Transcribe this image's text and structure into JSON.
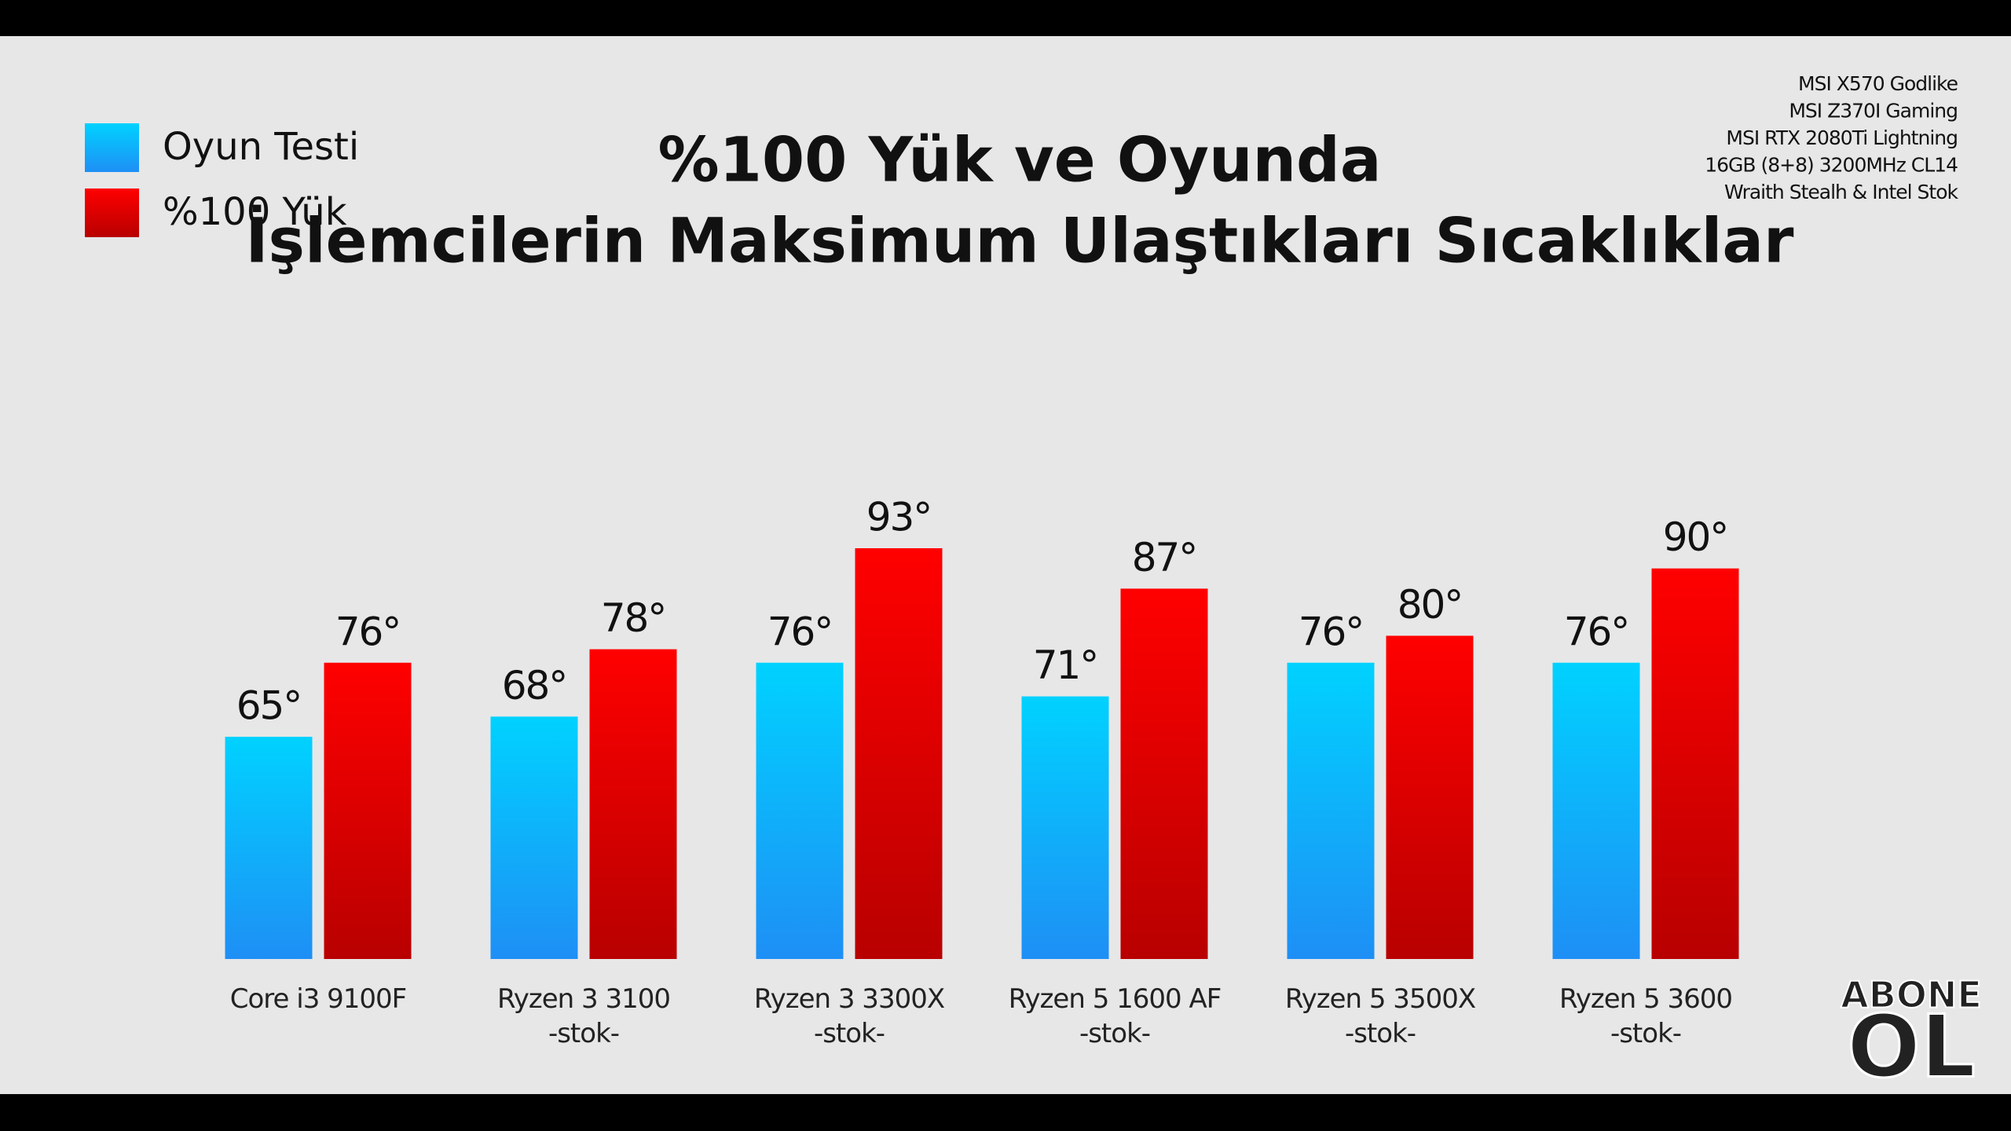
{
  "chart_data": {
    "type": "bar",
    "title": [
      "%100 Yük ve Oyunda",
      "İşlemcilerin Maksimum Ulaştıkları Sıcaklıklar"
    ],
    "categories": [
      "Core i3 9100F",
      "Ryzen 3 3100\n-stok-",
      "Ryzen 3 3300X\n-stok-",
      "Ryzen 5 1600 AF\n-stok-",
      "Ryzen 5 3500X\n-stok-",
      "Ryzen 5 3600\n-stok-"
    ],
    "series": [
      {
        "name": "Oyun Testi",
        "color": "#00d2ff",
        "values": [
          65,
          68,
          76,
          71,
          76,
          76
        ],
        "value_labels": [
          "65°",
          "68°",
          "76°",
          "71°",
          "76°",
          "76°"
        ]
      },
      {
        "name": "%100 Yük",
        "color": "#ff0000",
        "values": [
          76,
          78,
          93,
          87,
          80,
          90
        ],
        "value_labels": [
          "76°",
          "78°",
          "93°",
          "87°",
          "80°",
          "90°"
        ]
      }
    ],
    "ylim": [
      32,
      100
    ],
    "legend": "top-left"
  },
  "specs": [
    "MSI X570 Godlike",
    "MSI Z370I Gaming",
    "MSI RTX 2080Ti Lightning",
    "16GB (8+8) 3200MHz CL14",
    "Wraith Stealh & Intel Stok"
  ],
  "badge": {
    "line1": "ABONE",
    "line2": "OL"
  }
}
